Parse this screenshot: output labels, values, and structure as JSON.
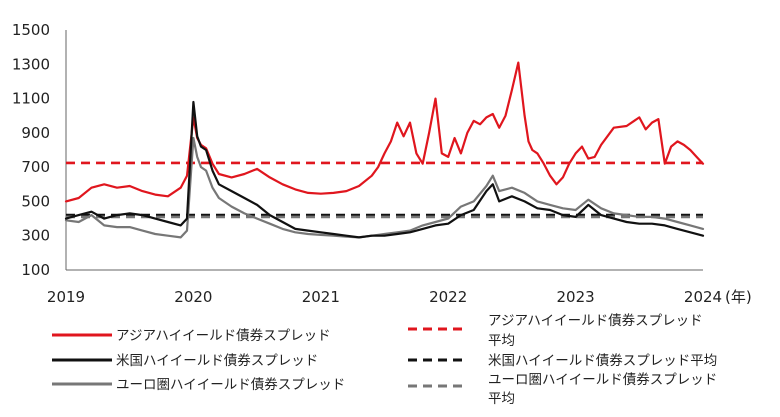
{
  "chart_data": {
    "type": "line",
    "title": "",
    "xlabel": "",
    "ylabel": "",
    "x_unit": "(年)",
    "xlim": [
      2019,
      2024
    ],
    "ylim": [
      100,
      1500
    ],
    "x_ticks": [
      "2019",
      "2020",
      "2021",
      "2022",
      "2023",
      "2024"
    ],
    "y_ticks": [
      "100",
      "300",
      "500",
      "700",
      "900",
      "1100",
      "1300",
      "1500"
    ],
    "series": [
      {
        "name": "アジアハイイールド債券スプレッド",
        "color": "#e0161e",
        "style": "solid",
        "x": [
          2019.0,
          2019.1,
          2019.2,
          2019.3,
          2019.4,
          2019.5,
          2019.6,
          2019.7,
          2019.8,
          2019.9,
          2019.95,
          2020.0,
          2020.03,
          2020.06,
          2020.1,
          2020.15,
          2020.2,
          2020.3,
          2020.4,
          2020.5,
          2020.6,
          2020.7,
          2020.8,
          2020.9,
          2021.0,
          2021.1,
          2021.2,
          2021.3,
          2021.4,
          2021.45,
          2021.5,
          2021.55,
          2021.6,
          2021.65,
          2021.7,
          2021.75,
          2021.8,
          2021.85,
          2021.9,
          2021.95,
          2022.0,
          2022.05,
          2022.1,
          2022.15,
          2022.2,
          2022.25,
          2022.3,
          2022.35,
          2022.4,
          2022.45,
          2022.5,
          2022.55,
          2022.6,
          2022.63,
          2022.66,
          2022.7,
          2022.75,
          2022.8,
          2022.85,
          2022.9,
          2022.95,
          2023.0,
          2023.05,
          2023.1,
          2023.15,
          2023.2,
          2023.3,
          2023.4,
          2023.5,
          2023.55,
          2023.6,
          2023.65,
          2023.7,
          2023.75,
          2023.8,
          2023.85,
          2023.9,
          2023.95,
          2024.0
        ],
        "values": [
          500,
          520,
          580,
          600,
          580,
          590,
          560,
          540,
          530,
          580,
          650,
          990,
          870,
          830,
          810,
          720,
          660,
          640,
          660,
          690,
          640,
          600,
          570,
          550,
          545,
          550,
          560,
          590,
          650,
          700,
          780,
          850,
          960,
          880,
          960,
          780,
          720,
          900,
          1100,
          780,
          760,
          870,
          780,
          900,
          970,
          950,
          990,
          1010,
          930,
          1000,
          1150,
          1310,
          1000,
          850,
          800,
          780,
          720,
          650,
          600,
          640,
          720,
          780,
          820,
          750,
          760,
          830,
          930,
          940,
          990,
          920,
          960,
          980,
          720,
          820,
          850,
          830,
          800,
          760,
          720
        ]
      },
      {
        "name": "米国ハイイールド債券スプレッド",
        "color": "#111111",
        "style": "solid",
        "x": [
          2019.0,
          2019.1,
          2019.2,
          2019.3,
          2019.4,
          2019.5,
          2019.6,
          2019.7,
          2019.8,
          2019.9,
          2019.95,
          2020.0,
          2020.03,
          2020.06,
          2020.1,
          2020.15,
          2020.2,
          2020.3,
          2020.4,
          2020.5,
          2020.6,
          2020.7,
          2020.8,
          2020.9,
          2021.0,
          2021.1,
          2021.2,
          2021.3,
          2021.4,
          2021.5,
          2021.6,
          2021.7,
          2021.8,
          2021.9,
          2022.0,
          2022.1,
          2022.2,
          2022.3,
          2022.35,
          2022.4,
          2022.5,
          2022.6,
          2022.7,
          2022.8,
          2022.9,
          2023.0,
          2023.1,
          2023.2,
          2023.3,
          2023.4,
          2023.5,
          2023.6,
          2023.7,
          2023.8,
          2023.9,
          2024.0
        ],
        "values": [
          400,
          420,
          440,
          400,
          420,
          430,
          420,
          400,
          380,
          360,
          400,
          1080,
          880,
          820,
          800,
          680,
          600,
          560,
          520,
          480,
          420,
          380,
          340,
          330,
          320,
          310,
          300,
          290,
          300,
          300,
          310,
          320,
          340,
          360,
          370,
          420,
          450,
          560,
          600,
          500,
          530,
          500,
          460,
          450,
          420,
          410,
          480,
          420,
          400,
          380,
          370,
          370,
          360,
          340,
          320,
          300
        ]
      },
      {
        "name": "ユーロ圏ハイイールド債券スプレッド",
        "color": "#777777",
        "style": "solid",
        "x": [
          2019.0,
          2019.1,
          2019.2,
          2019.3,
          2019.4,
          2019.5,
          2019.6,
          2019.7,
          2019.8,
          2019.9,
          2019.95,
          2020.0,
          2020.03,
          2020.06,
          2020.1,
          2020.15,
          2020.2,
          2020.3,
          2020.4,
          2020.5,
          2020.6,
          2020.7,
          2020.8,
          2020.9,
          2021.0,
          2021.1,
          2021.2,
          2021.3,
          2021.4,
          2021.5,
          2021.6,
          2021.7,
          2021.8,
          2021.9,
          2022.0,
          2022.1,
          2022.2,
          2022.3,
          2022.35,
          2022.4,
          2022.5,
          2022.6,
          2022.7,
          2022.8,
          2022.9,
          2023.0,
          2023.1,
          2023.2,
          2023.3,
          2023.4,
          2023.5,
          2023.6,
          2023.7,
          2023.8,
          2023.9,
          2024.0
        ],
        "values": [
          390,
          380,
          420,
          360,
          350,
          350,
          330,
          310,
          300,
          290,
          330,
          870,
          760,
          700,
          680,
          580,
          520,
          470,
          430,
          400,
          370,
          340,
          320,
          310,
          305,
          300,
          295,
          290,
          300,
          310,
          320,
          330,
          360,
          380,
          400,
          470,
          500,
          590,
          650,
          560,
          580,
          550,
          500,
          480,
          460,
          450,
          510,
          460,
          430,
          420,
          410,
          410,
          400,
          380,
          360,
          340
        ]
      },
      {
        "name": "アジアハイイールド債券スプレッド平均",
        "color": "#e0161e",
        "style": "dashed",
        "x": [
          2019.0,
          2024.0
        ],
        "values": [
          725,
          725
        ]
      },
      {
        "name": "米国ハイイールド債券スプレッド平均",
        "color": "#111111",
        "style": "dashed",
        "x": [
          2019.0,
          2024.0
        ],
        "values": [
          420,
          420
        ]
      },
      {
        "name": "ユーロ圏ハイイールド債券スプレッド平均",
        "color": "#777777",
        "style": "dashed",
        "x": [
          2019.0,
          2024.0
        ],
        "values": [
          410,
          410
        ]
      }
    ],
    "legend": {
      "placement": "bottom",
      "left": [
        "アジアハイイールド債券スプレッド",
        "米国ハイイールド債券スプレッド",
        "ユーロ圏ハイイールド債券スプレッド"
      ],
      "right": [
        [
          "アジアハイイールド債券スプレッド",
          "平均"
        ],
        [
          "米国ハイイールド債券スプレッド平均"
        ],
        [
          "ユーロ圏ハイイールド債券スプレッド",
          "平均"
        ]
      ]
    }
  }
}
